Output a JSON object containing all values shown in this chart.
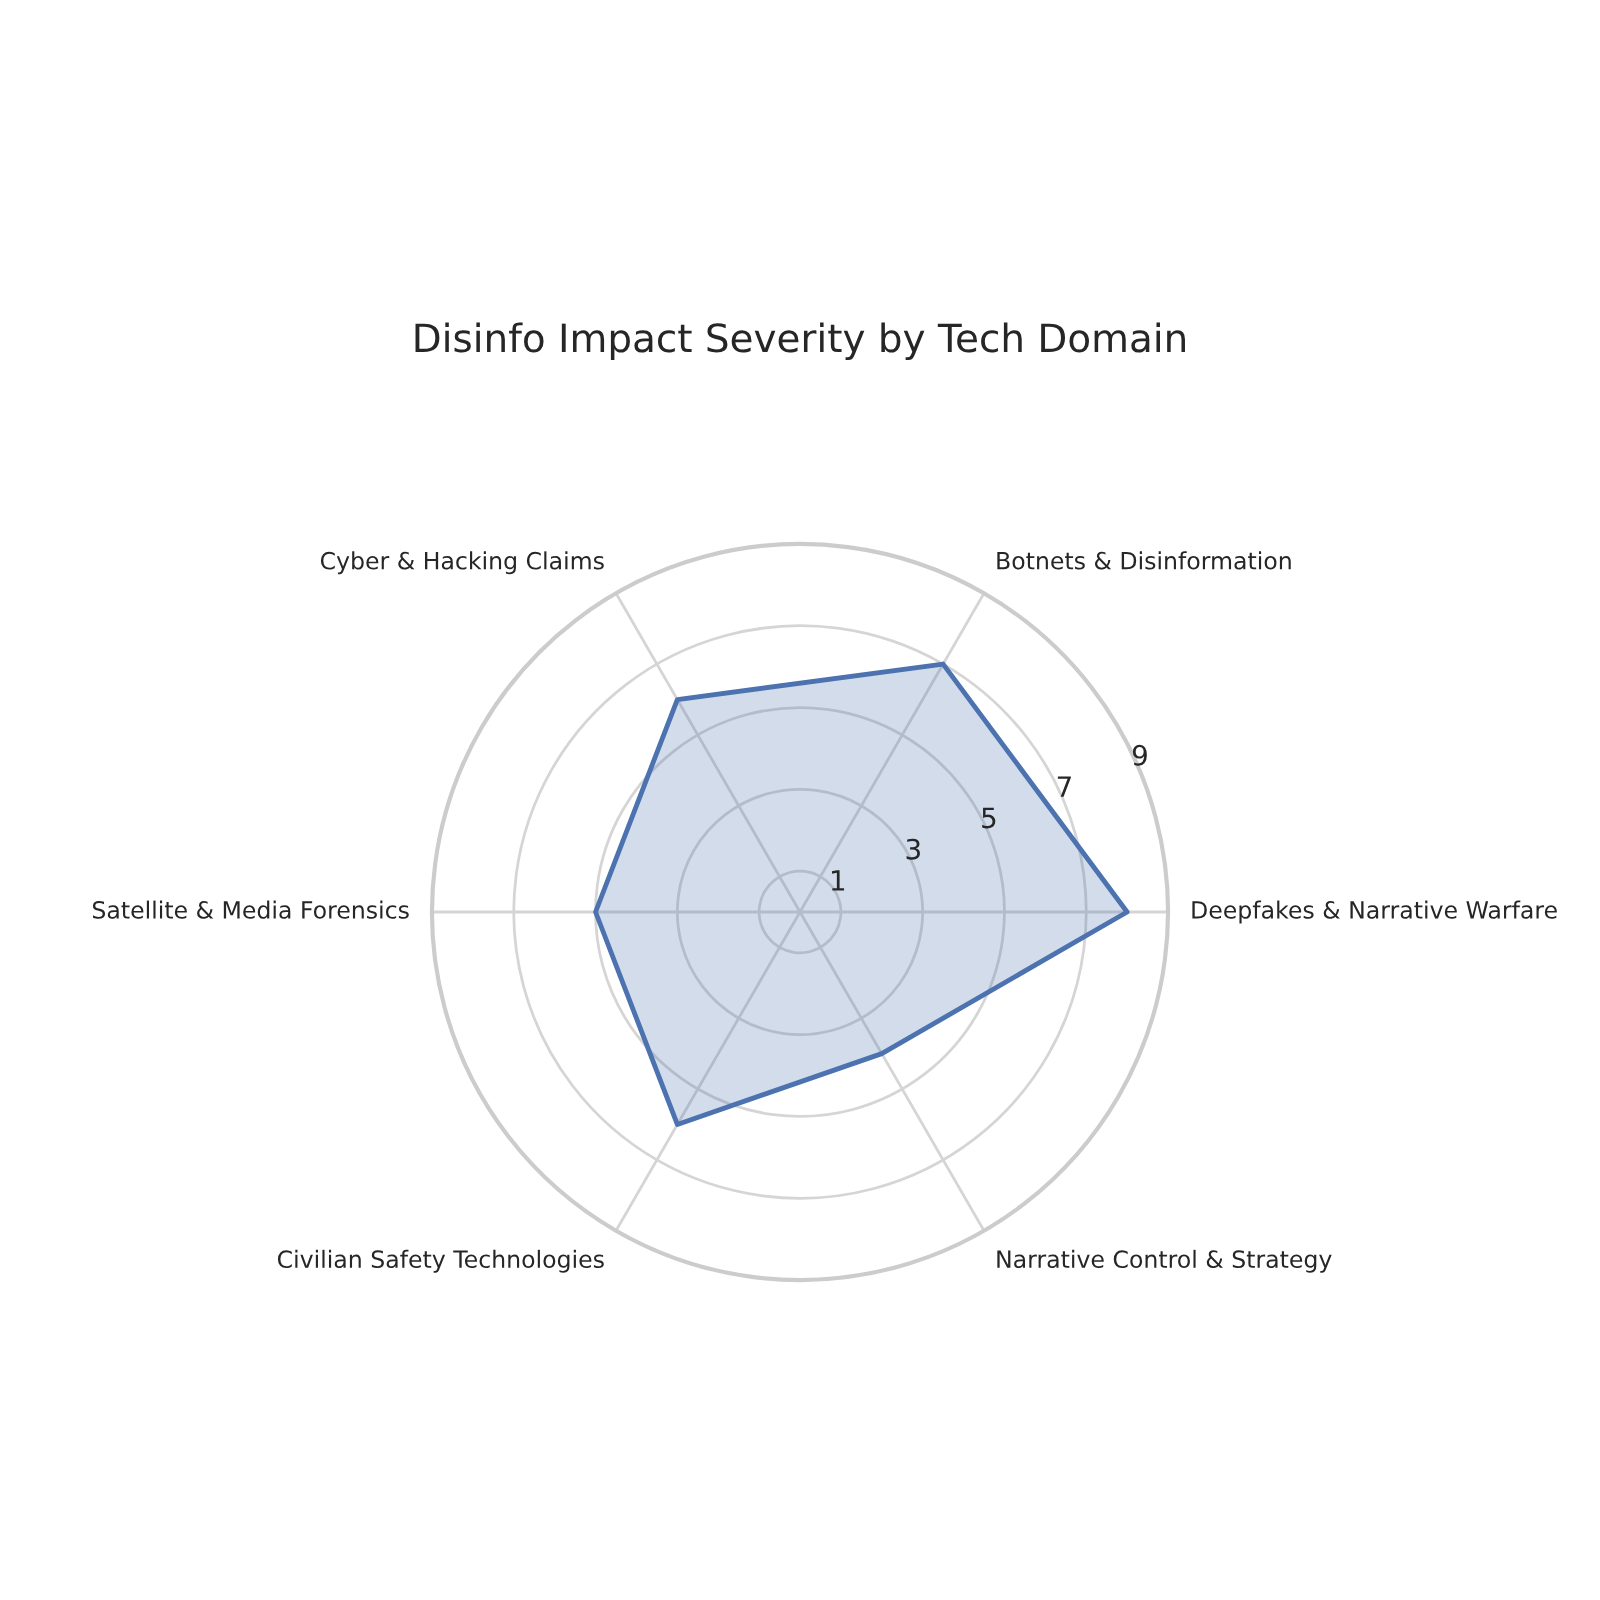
{
  "chart_data": {
    "type": "radar",
    "title": "Disinfo Impact Severity by Tech Domain",
    "categories": [
      "Botnets & Disinformation",
      "Deepfakes & Narrative Warfare",
      "Narrative Control & Strategy",
      "Civilian Safety Technologies",
      "Satellite & Media Forensics",
      "Cyber & Hacking Claims"
    ],
    "series": [
      {
        "color": "#4c72b0",
        "values": [
          7,
          8,
          4,
          6,
          5,
          6
        ]
      }
    ],
    "ylim": [
      0,
      9
    ],
    "yticks": [
      1,
      3,
      5,
      7,
      9
    ],
    "grid": true,
    "marker": "none",
    "line_style": "solid"
  }
}
